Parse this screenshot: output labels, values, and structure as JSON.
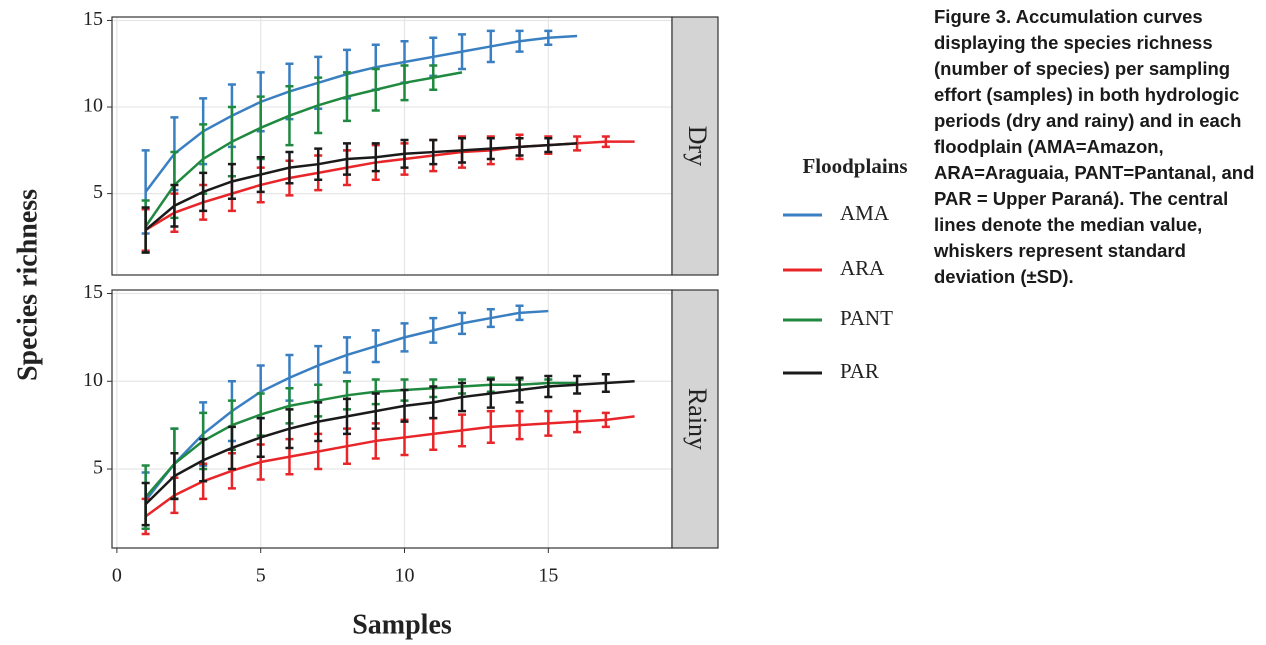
{
  "chart_data": [
    {
      "type": "line",
      "facet": "Dry",
      "x": [
        1,
        2,
        3,
        4,
        5,
        6,
        7,
        8,
        9,
        10,
        11,
        12,
        13,
        14,
        15,
        16,
        17,
        18
      ],
      "xlim": [
        -0.17,
        19.3
      ],
      "xticks": [
        0,
        5,
        10,
        15
      ],
      "ylim": [
        0.3,
        15.2
      ],
      "yticks": [
        5,
        10,
        15
      ],
      "grid": true,
      "ylabel": "Species richness",
      "legend_title": "Floodplains",
      "series": [
        {
          "name": "AMA",
          "color": "#3a7fc1",
          "values": [
            5.1,
            7.3,
            8.6,
            9.5,
            10.3,
            10.9,
            11.4,
            11.9,
            12.3,
            12.6,
            12.9,
            13.2,
            13.5,
            13.8,
            14.0,
            14.1,
            null,
            null
          ],
          "errors": [
            2.4,
            2.1,
            1.9,
            1.8,
            1.7,
            1.6,
            1.5,
            1.4,
            1.3,
            1.2,
            1.1,
            1.0,
            0.9,
            0.6,
            0.4,
            null,
            null,
            null
          ]
        },
        {
          "name": "ARA",
          "color": "#e8262a",
          "values": [
            2.9,
            3.9,
            4.5,
            5.0,
            5.5,
            5.9,
            6.2,
            6.5,
            6.8,
            7.0,
            7.2,
            7.4,
            7.5,
            7.7,
            7.8,
            7.9,
            8.0,
            8.0
          ],
          "errors": [
            1.2,
            1.1,
            1.0,
            1.0,
            1.0,
            1.0,
            1.0,
            1.0,
            1.0,
            0.9,
            0.9,
            0.9,
            0.8,
            0.7,
            0.5,
            0.4,
            0.3,
            null
          ]
        },
        {
          "name": "PANT",
          "color": "#1f8a3f",
          "values": [
            3.1,
            5.5,
            7.0,
            8.0,
            8.8,
            9.5,
            10.1,
            10.6,
            11.0,
            11.4,
            11.7,
            12.0,
            null,
            null,
            null,
            null,
            null,
            null
          ],
          "errors": [
            1.5,
            1.9,
            2.0,
            2.0,
            1.8,
            1.7,
            1.6,
            1.4,
            1.2,
            1.0,
            0.7,
            null,
            null,
            null,
            null,
            null,
            null,
            null
          ]
        },
        {
          "name": "PAR",
          "color": "#1a1a1a",
          "values": [
            2.9,
            4.3,
            5.1,
            5.7,
            6.1,
            6.5,
            6.7,
            7.0,
            7.1,
            7.3,
            7.4,
            7.5,
            7.6,
            7.7,
            7.8,
            7.9,
            null,
            null
          ],
          "errors": [
            1.3,
            1.2,
            1.1,
            1.0,
            1.0,
            0.9,
            0.9,
            0.9,
            0.8,
            0.8,
            0.7,
            0.7,
            0.6,
            0.5,
            0.4,
            null,
            null,
            null
          ]
        }
      ]
    },
    {
      "type": "line",
      "facet": "Rainy",
      "x": [
        1,
        2,
        3,
        4,
        5,
        6,
        7,
        8,
        9,
        10,
        11,
        12,
        13,
        14,
        15,
        16,
        17,
        18
      ],
      "xlim": [
        -0.17,
        19.3
      ],
      "xticks": [
        0,
        5,
        10,
        15
      ],
      "ylim": [
        0.5,
        15.2
      ],
      "yticks": [
        5,
        10,
        15
      ],
      "grid": true,
      "xlabel": "Samples",
      "series": [
        {
          "color": "#3a7fc1",
          "values": [
            3.2,
            5.3,
            7.0,
            8.3,
            9.4,
            10.2,
            10.9,
            11.5,
            12.0,
            12.5,
            12.9,
            13.3,
            13.6,
            13.9,
            14.0,
            null,
            null,
            null
          ],
          "errors": [
            1.6,
            2.0,
            1.8,
            1.7,
            1.5,
            1.3,
            1.1,
            1.0,
            0.9,
            0.8,
            0.7,
            0.6,
            0.5,
            0.4,
            null,
            null,
            null,
            null
          ]
        },
        {
          "color": "#e8262a",
          "values": [
            2.3,
            3.5,
            4.3,
            4.9,
            5.4,
            5.7,
            6.0,
            6.3,
            6.6,
            6.8,
            7.0,
            7.2,
            7.4,
            7.5,
            7.6,
            7.7,
            7.8,
            8.0
          ],
          "errors": [
            1.0,
            1.0,
            1.0,
            1.0,
            1.0,
            1.0,
            1.0,
            1.0,
            1.0,
            1.0,
            0.9,
            0.9,
            0.9,
            0.8,
            0.7,
            0.6,
            0.4,
            null
          ]
        },
        {
          "color": "#1f8a3f",
          "values": [
            3.4,
            5.3,
            6.6,
            7.5,
            8.1,
            8.6,
            8.9,
            9.2,
            9.4,
            9.5,
            9.6,
            9.7,
            9.8,
            9.8,
            9.9,
            9.9,
            null,
            null
          ],
          "errors": [
            1.8,
            2.0,
            1.6,
            1.4,
            1.2,
            1.0,
            0.9,
            0.8,
            0.7,
            0.6,
            0.5,
            0.4,
            0.4,
            0.3,
            0.2,
            null,
            null,
            null
          ]
        },
        {
          "color": "#1a1a1a",
          "values": [
            3.0,
            4.6,
            5.5,
            6.2,
            6.8,
            7.3,
            7.7,
            8.0,
            8.3,
            8.6,
            8.8,
            9.1,
            9.3,
            9.5,
            9.7,
            9.8,
            9.9,
            10.0
          ],
          "errors": [
            1.2,
            1.3,
            1.2,
            1.2,
            1.1,
            1.1,
            1.1,
            1.0,
            1.0,
            0.9,
            0.9,
            0.8,
            0.8,
            0.7,
            0.6,
            0.5,
            0.5,
            null
          ]
        }
      ]
    }
  ],
  "caption": {
    "label": "Figure 3.",
    "text": "Accumulation curves displaying the species richness (number of species) per sampling effort (samples) in both hydrologic periods (dry and rainy) and in each floodplain (AMA=Amazon, ARA=Araguaia, PANT=Pantanal, and PAR = Upper Paraná). The central lines denote the median value, whiskers represent standard deviation (±SD)."
  }
}
